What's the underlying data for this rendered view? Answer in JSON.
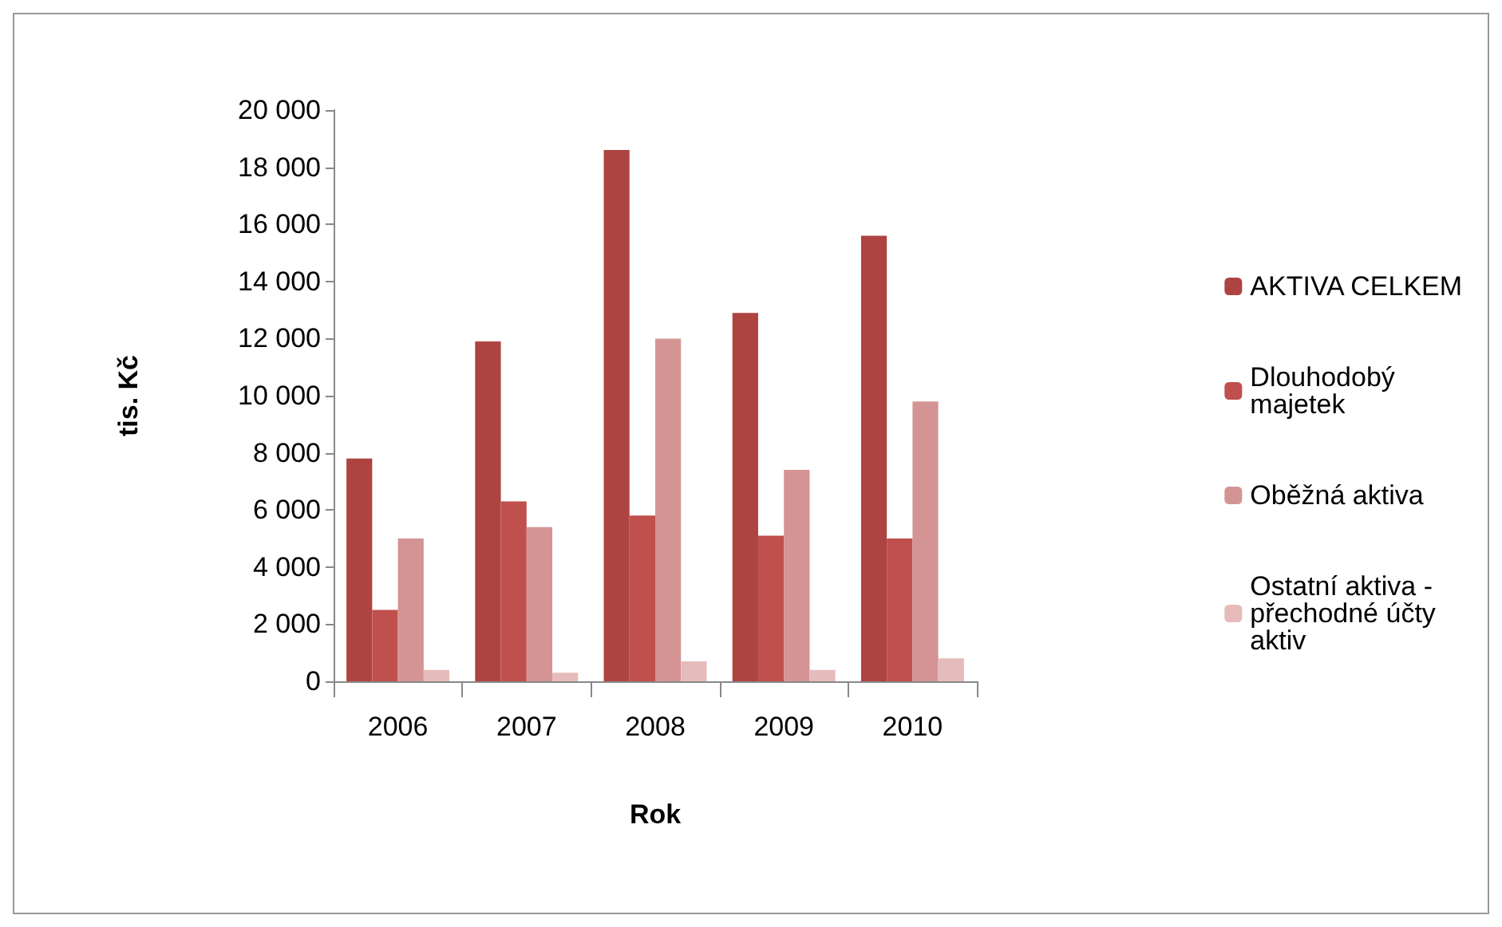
{
  "chart_data": {
    "type": "bar",
    "xlabel": "Rok",
    "ylabel": "tis. Kč",
    "categories": [
      "2006",
      "2007",
      "2008",
      "2009",
      "2010"
    ],
    "series": [
      {
        "name": "AKTIVA CELKEM",
        "color": "#ae4442",
        "values": [
          7800,
          11900,
          18600,
          12900,
          15600
        ]
      },
      {
        "name": "Dlouhodobý majetek",
        "color": "#c0504d",
        "values": [
          2500,
          6300,
          5800,
          5100,
          5000
        ]
      },
      {
        "name": "Oběžná aktiva",
        "color": "#d49494",
        "values": [
          5000,
          5400,
          12000,
          7400,
          9800
        ]
      },
      {
        "name": "Ostatní aktiva - přechodné účty aktiv",
        "color": "#e5bcbb",
        "values": [
          400,
          300,
          700,
          400,
          800
        ]
      }
    ],
    "ylim": [
      0,
      20000
    ],
    "yticks": [
      0,
      2000,
      4000,
      6000,
      8000,
      10000,
      12000,
      14000,
      16000,
      18000,
      20000
    ],
    "grid": false,
    "legend": "right"
  }
}
